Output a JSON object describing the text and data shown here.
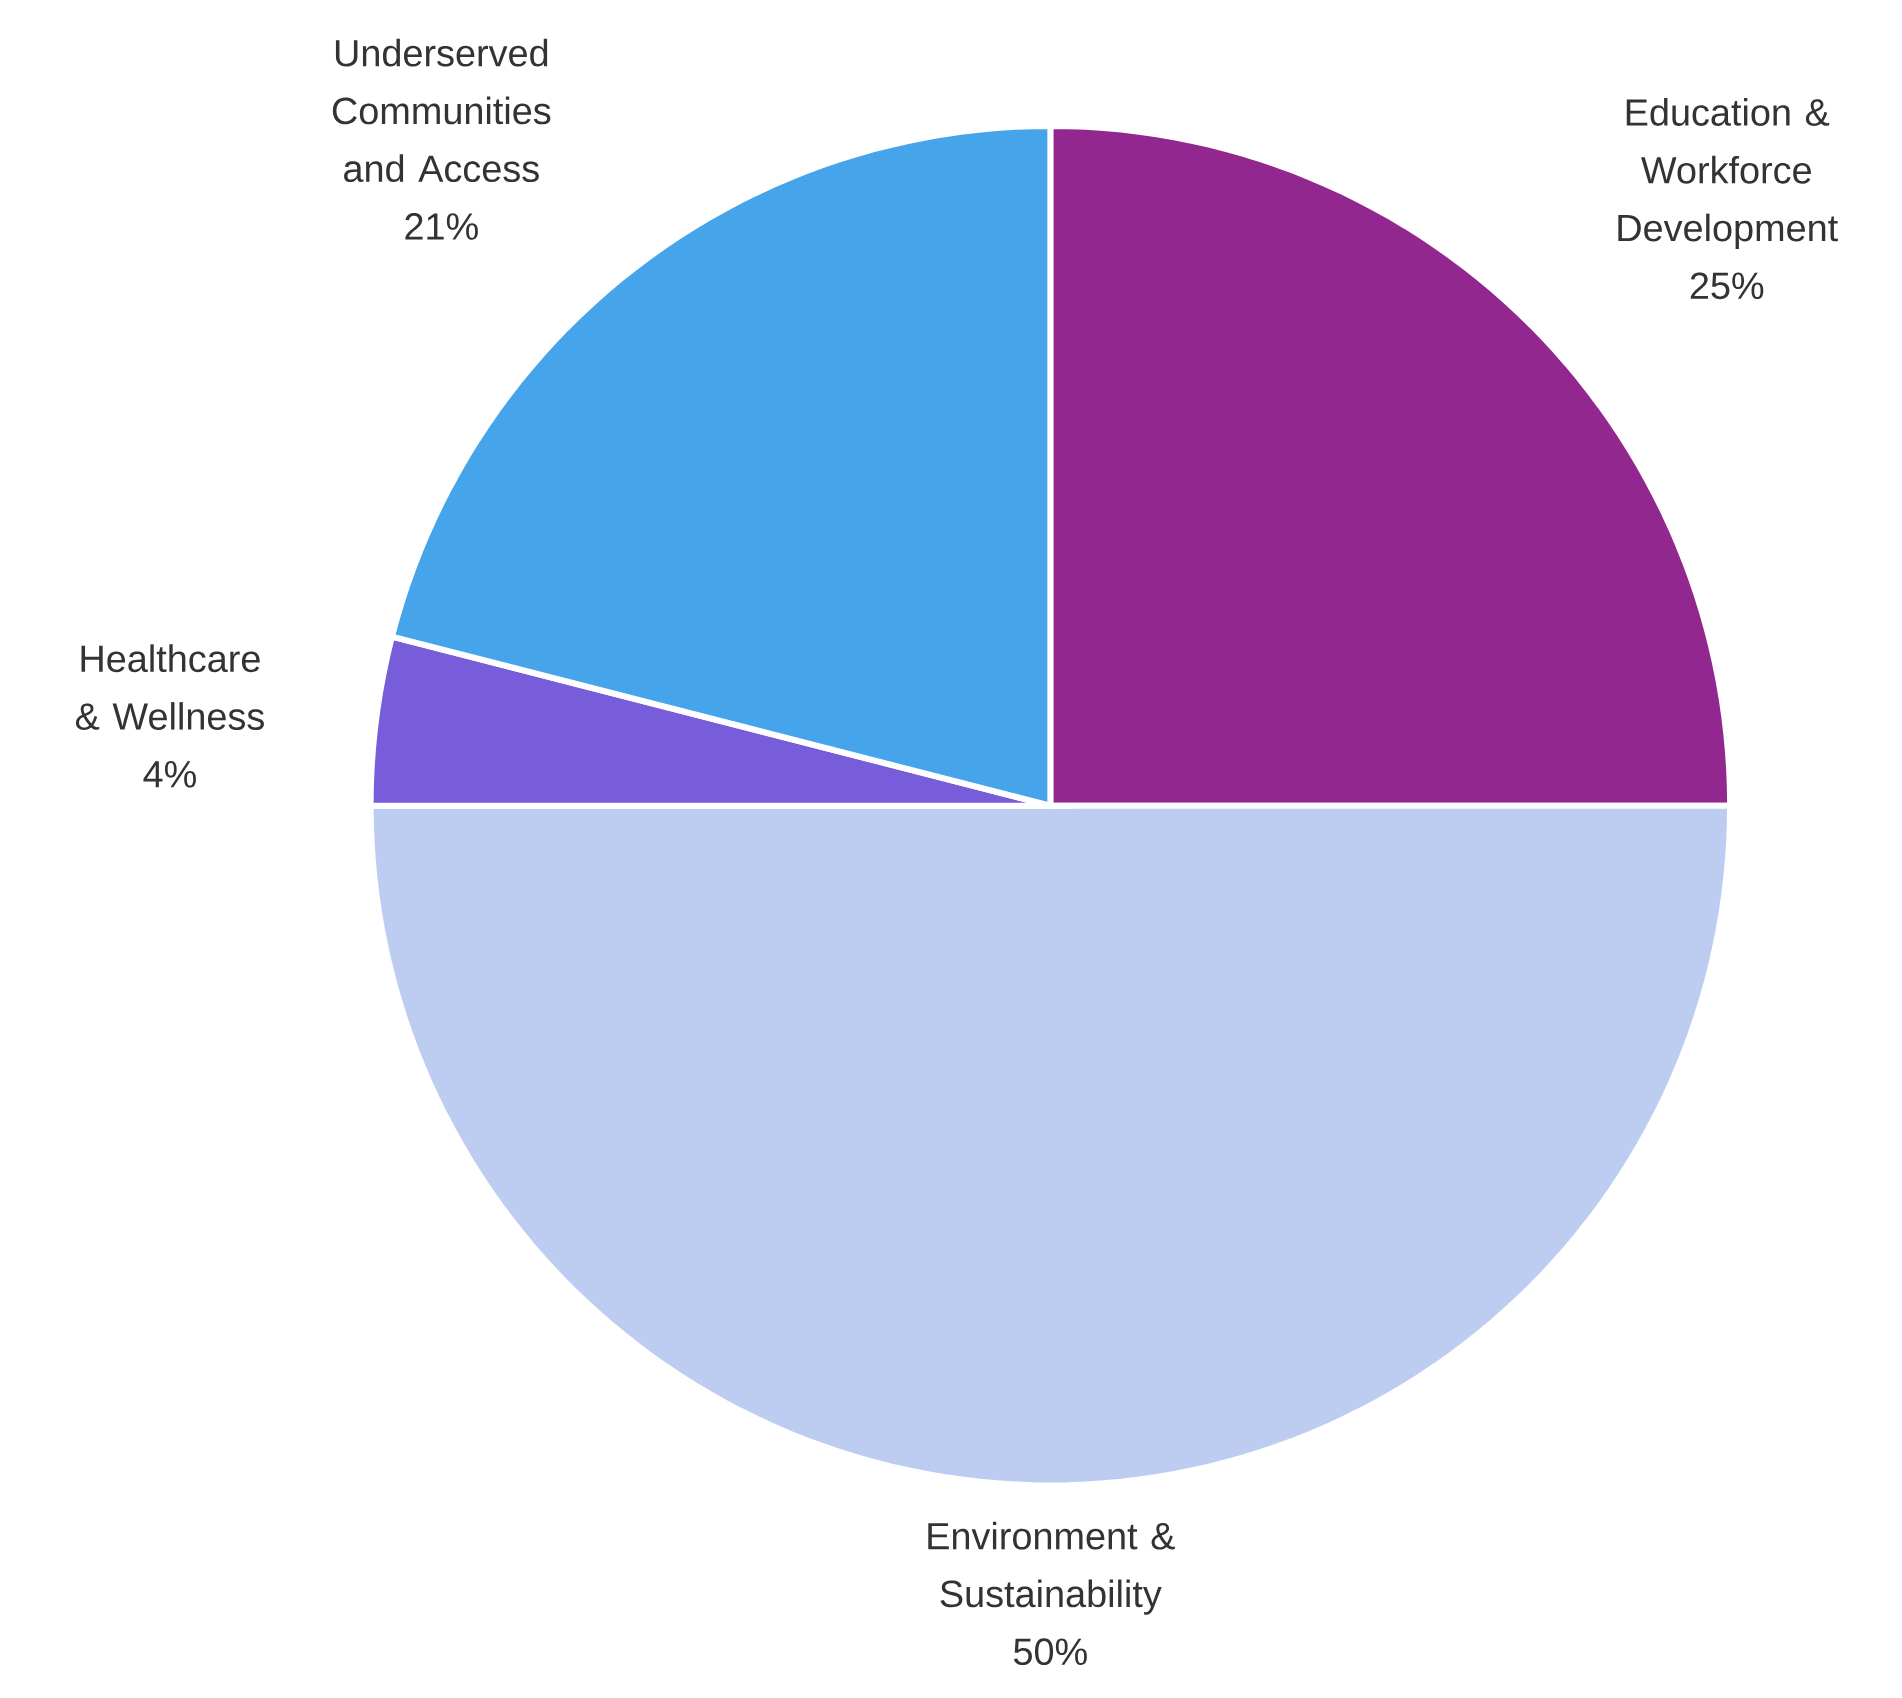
{
  "chart_data": {
    "type": "pie",
    "categories": [
      "Education & Workforce Development",
      "Environment & Sustainability",
      "Healthcare & Wellness",
      "Underserved Communities and Access"
    ],
    "values": [
      25,
      50,
      4,
      21
    ],
    "value_labels": [
      "25%",
      "50%",
      "4%",
      "21%"
    ],
    "colors": [
      "#92278f",
      "#bdcdf2",
      "#775dd9",
      "#46a5ea"
    ]
  }
}
